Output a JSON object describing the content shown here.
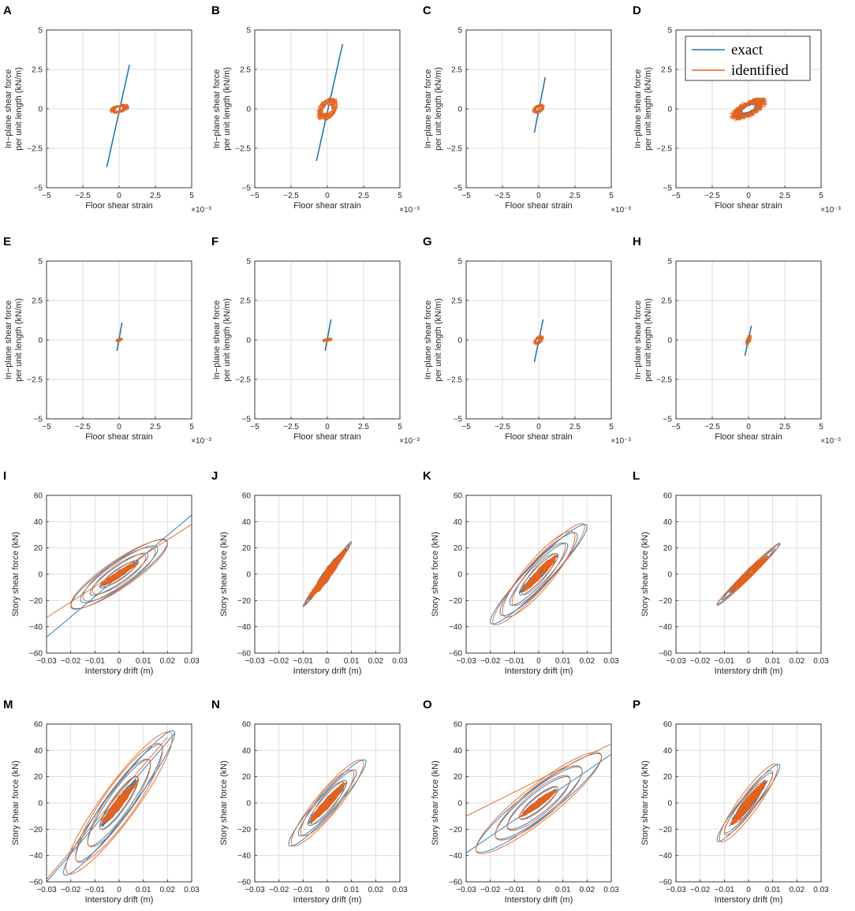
{
  "colors": {
    "exact": "#1f77b4",
    "identified": "#e8611a",
    "grid": "#dedede",
    "axis": "#262626"
  },
  "legend": {
    "panel": "D",
    "placement": "top-right",
    "entries": [
      "exact",
      "identified"
    ]
  },
  "axes_text": {
    "strain_xlabel": "Floor shear strain",
    "strain_exponent": "×10⁻³",
    "strain_ylabel_1": "In−plane shear force",
    "strain_ylabel_2": "per unit length (kN/m)",
    "drift_xlabel": "Interstory drift (m)",
    "drift_ylabel": "Story shear force (kN)"
  },
  "chart_data": [
    {
      "label": "A",
      "type": "line",
      "group": "strain",
      "xlim": [
        -5,
        5
      ],
      "ylim": [
        -5,
        5
      ],
      "xticks": [
        "−5",
        "−2.5",
        "0",
        "2.5",
        "5"
      ],
      "yticks": [
        "5",
        "2.5",
        "0",
        "−2.5",
        "−5"
      ],
      "series": [
        {
          "name": "exact",
          "x": [
            -0.85,
            0.72
          ],
          "y": [
            -3.7,
            2.8
          ]
        },
        {
          "name": "identified",
          "cluster": {
            "rx": 0.7,
            "ry": 0.3,
            "slope": 0.05,
            "loops": 10
          }
        }
      ]
    },
    {
      "label": "B",
      "type": "line",
      "group": "strain",
      "xlim": [
        -5,
        5
      ],
      "ylim": [
        -5,
        5
      ],
      "xticks": [
        "−5",
        "−2.5",
        "0",
        "2.5",
        "5"
      ],
      "yticks": [
        "5",
        "2.5",
        "0",
        "−2.5",
        "−5"
      ],
      "series": [
        {
          "name": "exact",
          "x": [
            -0.75,
            1.05
          ],
          "y": [
            -3.3,
            4.1
          ]
        },
        {
          "name": "identified",
          "cluster": {
            "rx": 0.75,
            "ry": 0.75,
            "slope": 0.1,
            "loops": 14
          }
        }
      ]
    },
    {
      "label": "C",
      "type": "line",
      "group": "strain",
      "xlim": [
        -5,
        5
      ],
      "ylim": [
        -5,
        5
      ],
      "xticks": [
        "−5",
        "−2.5",
        "0",
        "2.5",
        "5"
      ],
      "yticks": [
        "5",
        "2.5",
        "0",
        "−2.5",
        "−5"
      ],
      "series": [
        {
          "name": "exact",
          "x": [
            -0.3,
            0.45
          ],
          "y": [
            -1.5,
            2.0
          ]
        },
        {
          "name": "identified",
          "cluster": {
            "rx": 0.45,
            "ry": 0.3,
            "slope": 0.1,
            "loops": 9
          }
        }
      ]
    },
    {
      "label": "D",
      "type": "line",
      "group": "strain",
      "xlim": [
        -5,
        5
      ],
      "ylim": [
        -5,
        5
      ],
      "xticks": [
        "−5",
        "−2.5",
        "0",
        "2.5",
        "5"
      ],
      "yticks": [
        "5",
        "2.5",
        "0",
        "−2.5",
        "−5"
      ],
      "series": [
        {
          "name": "exact",
          "cluster": {
            "rx": 1.2,
            "ry": 0.5,
            "slope": 0.25,
            "loops": 12
          }
        },
        {
          "name": "identified",
          "cluster": {
            "rx": 1.3,
            "ry": 0.6,
            "slope": 0.25,
            "loops": 14
          }
        }
      ]
    },
    {
      "label": "E",
      "type": "line",
      "group": "strain",
      "xlim": [
        -5,
        5
      ],
      "ylim": [
        -5,
        5
      ],
      "xticks": [
        "−5",
        "−2.5",
        "0",
        "2.5",
        "5"
      ],
      "yticks": [
        "5",
        "2.5",
        "0",
        "−2.5",
        "−5"
      ],
      "series": [
        {
          "name": "exact",
          "x": [
            -0.15,
            0.2
          ],
          "y": [
            -0.7,
            1.1
          ]
        },
        {
          "name": "identified",
          "cluster": {
            "rx": 0.25,
            "ry": 0.12,
            "slope": 0.1,
            "loops": 6
          }
        }
      ]
    },
    {
      "label": "F",
      "type": "line",
      "group": "strain",
      "xlim": [
        -5,
        5
      ],
      "ylim": [
        -5,
        5
      ],
      "xticks": [
        "−5",
        "−2.5",
        "0",
        "2.5",
        "5"
      ],
      "yticks": [
        "5",
        "2.5",
        "0",
        "−2.5",
        "−5"
      ],
      "series": [
        {
          "name": "exact",
          "x": [
            -0.15,
            0.25
          ],
          "y": [
            -0.7,
            1.3
          ]
        },
        {
          "name": "identified",
          "cluster": {
            "rx": 0.35,
            "ry": 0.12,
            "slope": 0.05,
            "loops": 6
          }
        }
      ]
    },
    {
      "label": "G",
      "type": "line",
      "group": "strain",
      "xlim": [
        -5,
        5
      ],
      "ylim": [
        -5,
        5
      ],
      "xticks": [
        "−5",
        "−2.5",
        "0",
        "2.5",
        "5"
      ],
      "yticks": [
        "5",
        "2.5",
        "0",
        "−2.5",
        "−5"
      ],
      "series": [
        {
          "name": "exact",
          "x": [
            -0.3,
            0.3
          ],
          "y": [
            -1.4,
            1.3
          ]
        },
        {
          "name": "identified",
          "cluster": {
            "rx": 0.35,
            "ry": 0.3,
            "slope": 0.15,
            "loops": 9
          }
        }
      ]
    },
    {
      "label": "H",
      "type": "line",
      "group": "strain",
      "xlim": [
        -5,
        5
      ],
      "ylim": [
        -5,
        5
      ],
      "xticks": [
        "−5",
        "−2.5",
        "0",
        "2.5",
        "5"
      ],
      "yticks": [
        "5",
        "2.5",
        "0",
        "−2.5",
        "−5"
      ],
      "series": [
        {
          "name": "exact",
          "x": [
            -0.25,
            0.2
          ],
          "y": [
            -1.0,
            0.9
          ]
        },
        {
          "name": "identified",
          "cluster": {
            "rx": 0.2,
            "ry": 0.35,
            "slope": 0.3,
            "loops": 7
          }
        }
      ]
    },
    {
      "label": "I",
      "type": "line",
      "group": "drift",
      "xlim": [
        -0.03,
        0.03
      ],
      "ylim": [
        -60,
        60
      ],
      "xticks": [
        "−0.03",
        "−0.02",
        "−0.01",
        "0",
        "0.01",
        "0.02",
        "0.03"
      ],
      "yticks": [
        "60",
        "40",
        "20",
        "0",
        "−20",
        "−40",
        "−60"
      ],
      "series": [
        {
          "name": "exact",
          "loops": [
            [
              0.008,
              0.3
            ],
            [
              0.012,
              0.5
            ],
            [
              0.016,
              0.7
            ],
            [
              0.02,
              0.8
            ]
          ],
          "extra": [
            [
              -0.03,
              -48
            ],
            [
              0.03,
              45
            ]
          ],
          "k": 1200
        },
        {
          "name": "identified",
          "loops": [
            [
              0.007,
              0.35
            ],
            [
              0.011,
              0.6
            ],
            [
              0.015,
              0.8
            ],
            [
              0.02,
              0.9
            ]
          ],
          "extra": [
            [
              -0.03,
              -33
            ],
            [
              0.03,
              38
            ]
          ],
          "k": 1150
        }
      ]
    },
    {
      "label": "J",
      "type": "line",
      "group": "drift",
      "xlim": [
        -0.03,
        0.03
      ],
      "ylim": [
        -60,
        60
      ],
      "xticks": [
        "−0.03",
        "−0.02",
        "−0.01",
        "0",
        "0.01",
        "0.02",
        "0.03"
      ],
      "yticks": [
        "60",
        "40",
        "20",
        "0",
        "−20",
        "−40",
        "−60"
      ],
      "series": [
        {
          "name": "exact",
          "loops": [
            [
              0.006,
              0.05
            ],
            [
              0.009,
              0.08
            ],
            [
              0.01,
              0.1
            ]
          ],
          "k": 2450
        },
        {
          "name": "identified",
          "loops": [
            [
              0.005,
              0.06
            ],
            [
              0.008,
              0.1
            ],
            [
              0.0095,
              0.12
            ]
          ],
          "k": 2400
        }
      ]
    },
    {
      "label": "K",
      "type": "line",
      "group": "drift",
      "xlim": [
        -0.03,
        0.03
      ],
      "ylim": [
        -60,
        60
      ],
      "xticks": [
        "−0.03",
        "−0.02",
        "−0.01",
        "0",
        "0.01",
        "0.02",
        "0.03"
      ],
      "yticks": [
        "60",
        "40",
        "20",
        "0",
        "−20",
        "−40",
        "−60"
      ],
      "series": [
        {
          "name": "exact",
          "loops": [
            [
              0.008,
              0.3
            ],
            [
              0.012,
              0.45
            ],
            [
              0.016,
              0.6
            ],
            [
              0.02,
              0.55
            ]
          ],
          "k": 1800
        },
        {
          "name": "identified",
          "loops": [
            [
              0.007,
              0.35
            ],
            [
              0.011,
              0.5
            ],
            [
              0.015,
              0.7
            ],
            [
              0.019,
              0.6
            ]
          ],
          "k": 1900
        }
      ]
    },
    {
      "label": "L",
      "type": "line",
      "group": "drift",
      "xlim": [
        -0.03,
        0.03
      ],
      "ylim": [
        -60,
        60
      ],
      "xticks": [
        "−0.03",
        "−0.02",
        "−0.01",
        "0",
        "0.01",
        "0.02",
        "0.03"
      ],
      "yticks": [
        "60",
        "40",
        "20",
        "0",
        "−20",
        "−40",
        "−60"
      ],
      "series": [
        {
          "name": "exact",
          "loops": [
            [
              0.008,
              0.08
            ],
            [
              0.011,
              0.12
            ],
            [
              0.013,
              0.15
            ]
          ],
          "k": 1750
        },
        {
          "name": "identified",
          "loops": [
            [
              0.007,
              0.1
            ],
            [
              0.01,
              0.14
            ],
            [
              0.013,
              0.18
            ]
          ],
          "k": 1800
        }
      ]
    },
    {
      "label": "M",
      "type": "line",
      "group": "drift",
      "xlim": [
        -0.03,
        0.03
      ],
      "ylim": [
        -60,
        60
      ],
      "xticks": [
        "−0.03",
        "−0.02",
        "−0.01",
        "0",
        "0.01",
        "0.02",
        "0.03"
      ],
      "yticks": [
        "60",
        "40",
        "20",
        "0",
        "−20",
        "−40",
        "−60"
      ],
      "series": [
        {
          "name": "exact",
          "loops": [
            [
              0.008,
              0.3
            ],
            [
              0.013,
              0.5
            ],
            [
              0.018,
              0.6
            ],
            [
              0.023,
              0.55
            ]
          ],
          "extra": [
            [
              -0.03,
              -60
            ],
            [
              0.023,
              53
            ]
          ],
          "k": 2300
        },
        {
          "name": "identified",
          "loops": [
            [
              0.008,
              0.35
            ],
            [
              0.013,
              0.6
            ],
            [
              0.018,
              0.75
            ],
            [
              0.022,
              0.8
            ]
          ],
          "extra": [
            [
              -0.03,
              -58
            ],
            [
              0.02,
              50
            ]
          ],
          "k": 2250
        }
      ]
    },
    {
      "label": "N",
      "type": "line",
      "group": "drift",
      "xlim": [
        -0.03,
        0.03
      ],
      "ylim": [
        -60,
        60
      ],
      "xticks": [
        "−0.03",
        "−0.02",
        "−0.01",
        "0",
        "0.01",
        "0.02",
        "0.03"
      ],
      "yticks": [
        "60",
        "40",
        "20",
        "0",
        "−20",
        "−40",
        "−60"
      ],
      "series": [
        {
          "name": "exact",
          "loops": [
            [
              0.008,
              0.3
            ],
            [
              0.012,
              0.4
            ],
            [
              0.016,
              0.45
            ]
          ],
          "k": 1950
        },
        {
          "name": "identified",
          "loops": [
            [
              0.007,
              0.35
            ],
            [
              0.011,
              0.5
            ],
            [
              0.015,
              0.55
            ]
          ],
          "k": 2000
        }
      ]
    },
    {
      "label": "O",
      "type": "line",
      "group": "drift",
      "xlim": [
        -0.03,
        0.03
      ],
      "ylim": [
        -60,
        60
      ],
      "xticks": [
        "−0.03",
        "−0.02",
        "−0.01",
        "0",
        "0.01",
        "0.02",
        "0.03"
      ],
      "yticks": [
        "60",
        "40",
        "20",
        "0",
        "−20",
        "−40",
        "−60"
      ],
      "series": [
        {
          "name": "exact",
          "loops": [
            [
              0.008,
              0.35
            ],
            [
              0.013,
              0.6
            ],
            [
              0.018,
              0.8
            ],
            [
              0.026,
              0.85
            ]
          ],
          "extra": [
            [
              -0.03,
              -38
            ],
            [
              0.03,
              37
            ]
          ],
          "k": 1350
        },
        {
          "name": "identified",
          "loops": [
            [
              0.008,
              0.4
            ],
            [
              0.013,
              0.7
            ],
            [
              0.018,
              0.9
            ],
            [
              0.026,
              1.0
            ]
          ],
          "extra": [
            [
              -0.03,
              -10
            ],
            [
              0.03,
              45
            ]
          ],
          "k": 1350
        }
      ]
    },
    {
      "label": "P",
      "type": "line",
      "group": "drift",
      "xlim": [
        -0.03,
        0.03
      ],
      "ylim": [
        -60,
        60
      ],
      "xticks": [
        "−0.03",
        "−0.02",
        "−0.01",
        "0",
        "0.01",
        "0.02",
        "0.03"
      ],
      "yticks": [
        "60",
        "40",
        "20",
        "0",
        "−20",
        "−40",
        "−60"
      ],
      "series": [
        {
          "name": "exact",
          "loops": [
            [
              0.006,
              0.2
            ],
            [
              0.01,
              0.3
            ],
            [
              0.013,
              0.35
            ]
          ],
          "k": 2150
        },
        {
          "name": "identified",
          "loops": [
            [
              0.006,
              0.25
            ],
            [
              0.01,
              0.35
            ],
            [
              0.012,
              0.45
            ]
          ],
          "k": 2250
        }
      ]
    }
  ]
}
